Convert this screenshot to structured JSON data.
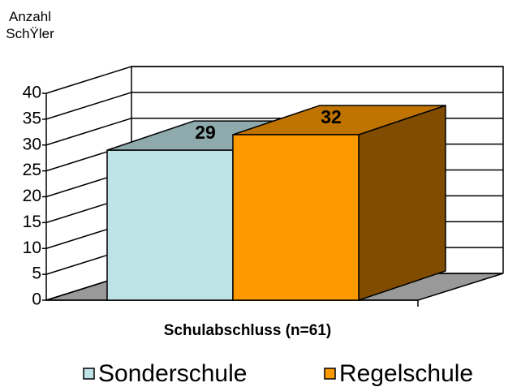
{
  "chart_data": {
    "type": "bar3d",
    "ylabel": "Anzahl SchŸler",
    "categories": [
      "Schulabschluss (n=61)"
    ],
    "series": [
      {
        "name": "Sonderschule",
        "color": "#bde3e6",
        "values": [
          29
        ]
      },
      {
        "name": "Regelschule",
        "color": "#ff9900",
        "values": [
          32
        ]
      }
    ],
    "ylim": [
      0,
      40
    ],
    "yticks": [
      0,
      5,
      10,
      15,
      20,
      25,
      30,
      35,
      40
    ],
    "grid": true
  }
}
